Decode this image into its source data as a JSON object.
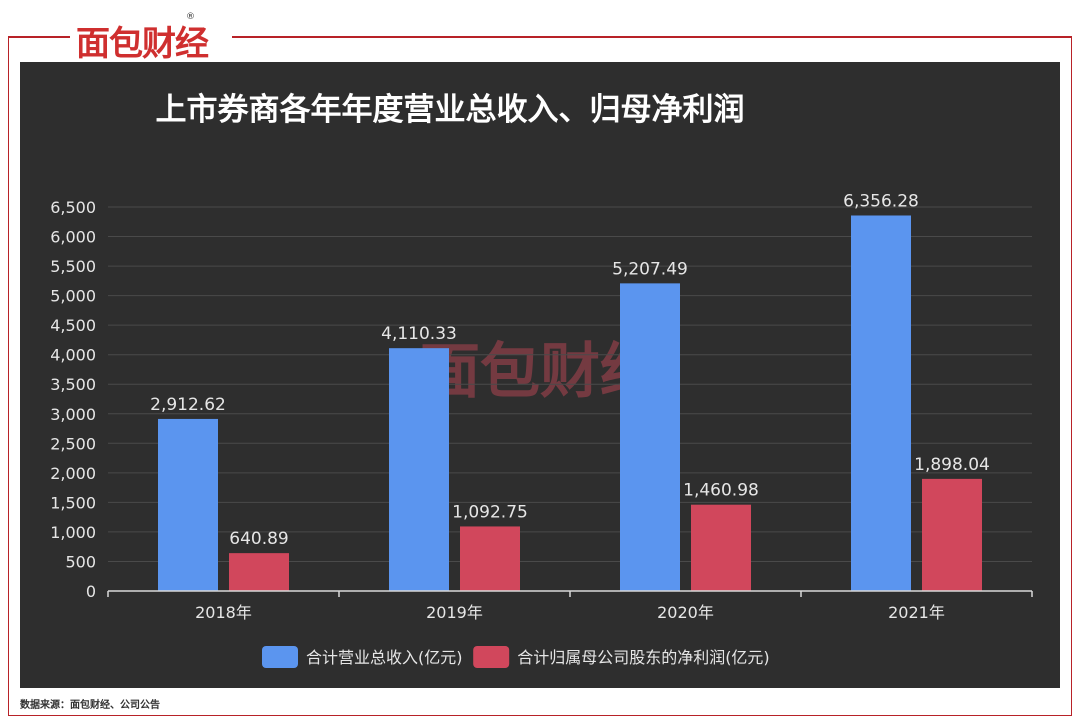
{
  "brand": {
    "logo_text": "面包财经",
    "reg_mark": "®"
  },
  "footer": {
    "source_text": "数据来源：面包财经、公司公告"
  },
  "colors": {
    "revenue": "#5b95ef",
    "net_profit": "#d1475c",
    "background": "#2e2e2e",
    "accent": "#b82228"
  },
  "chart_data": {
    "type": "bar",
    "title": "上市券商各年年度营业总收入、归母净利润",
    "categories": [
      "2018年",
      "2019年",
      "2020年",
      "2021年"
    ],
    "series": [
      {
        "name": "合计营业总收入(亿元)",
        "values": [
          2912.62,
          4110.33,
          5207.49,
          6356.28
        ],
        "labels": [
          "2,912.62",
          "4,110.33",
          "5,207.49",
          "6,356.28"
        ]
      },
      {
        "name": "合计归属母公司股东的净利润(亿元)",
        "values": [
          640.89,
          1092.75,
          1460.98,
          1898.04
        ],
        "labels": [
          "640.89",
          "1,092.75",
          "1,460.98",
          "1,898.04"
        ]
      }
    ],
    "ylim": [
      0,
      6500
    ],
    "yticks": [
      "0",
      "500",
      "1,000",
      "1,500",
      "2,000",
      "2,500",
      "3,000",
      "3,500",
      "4,000",
      "4,500",
      "5,000",
      "5,500",
      "6,000",
      "6,500"
    ],
    "grid": true,
    "legend": "bottom"
  }
}
